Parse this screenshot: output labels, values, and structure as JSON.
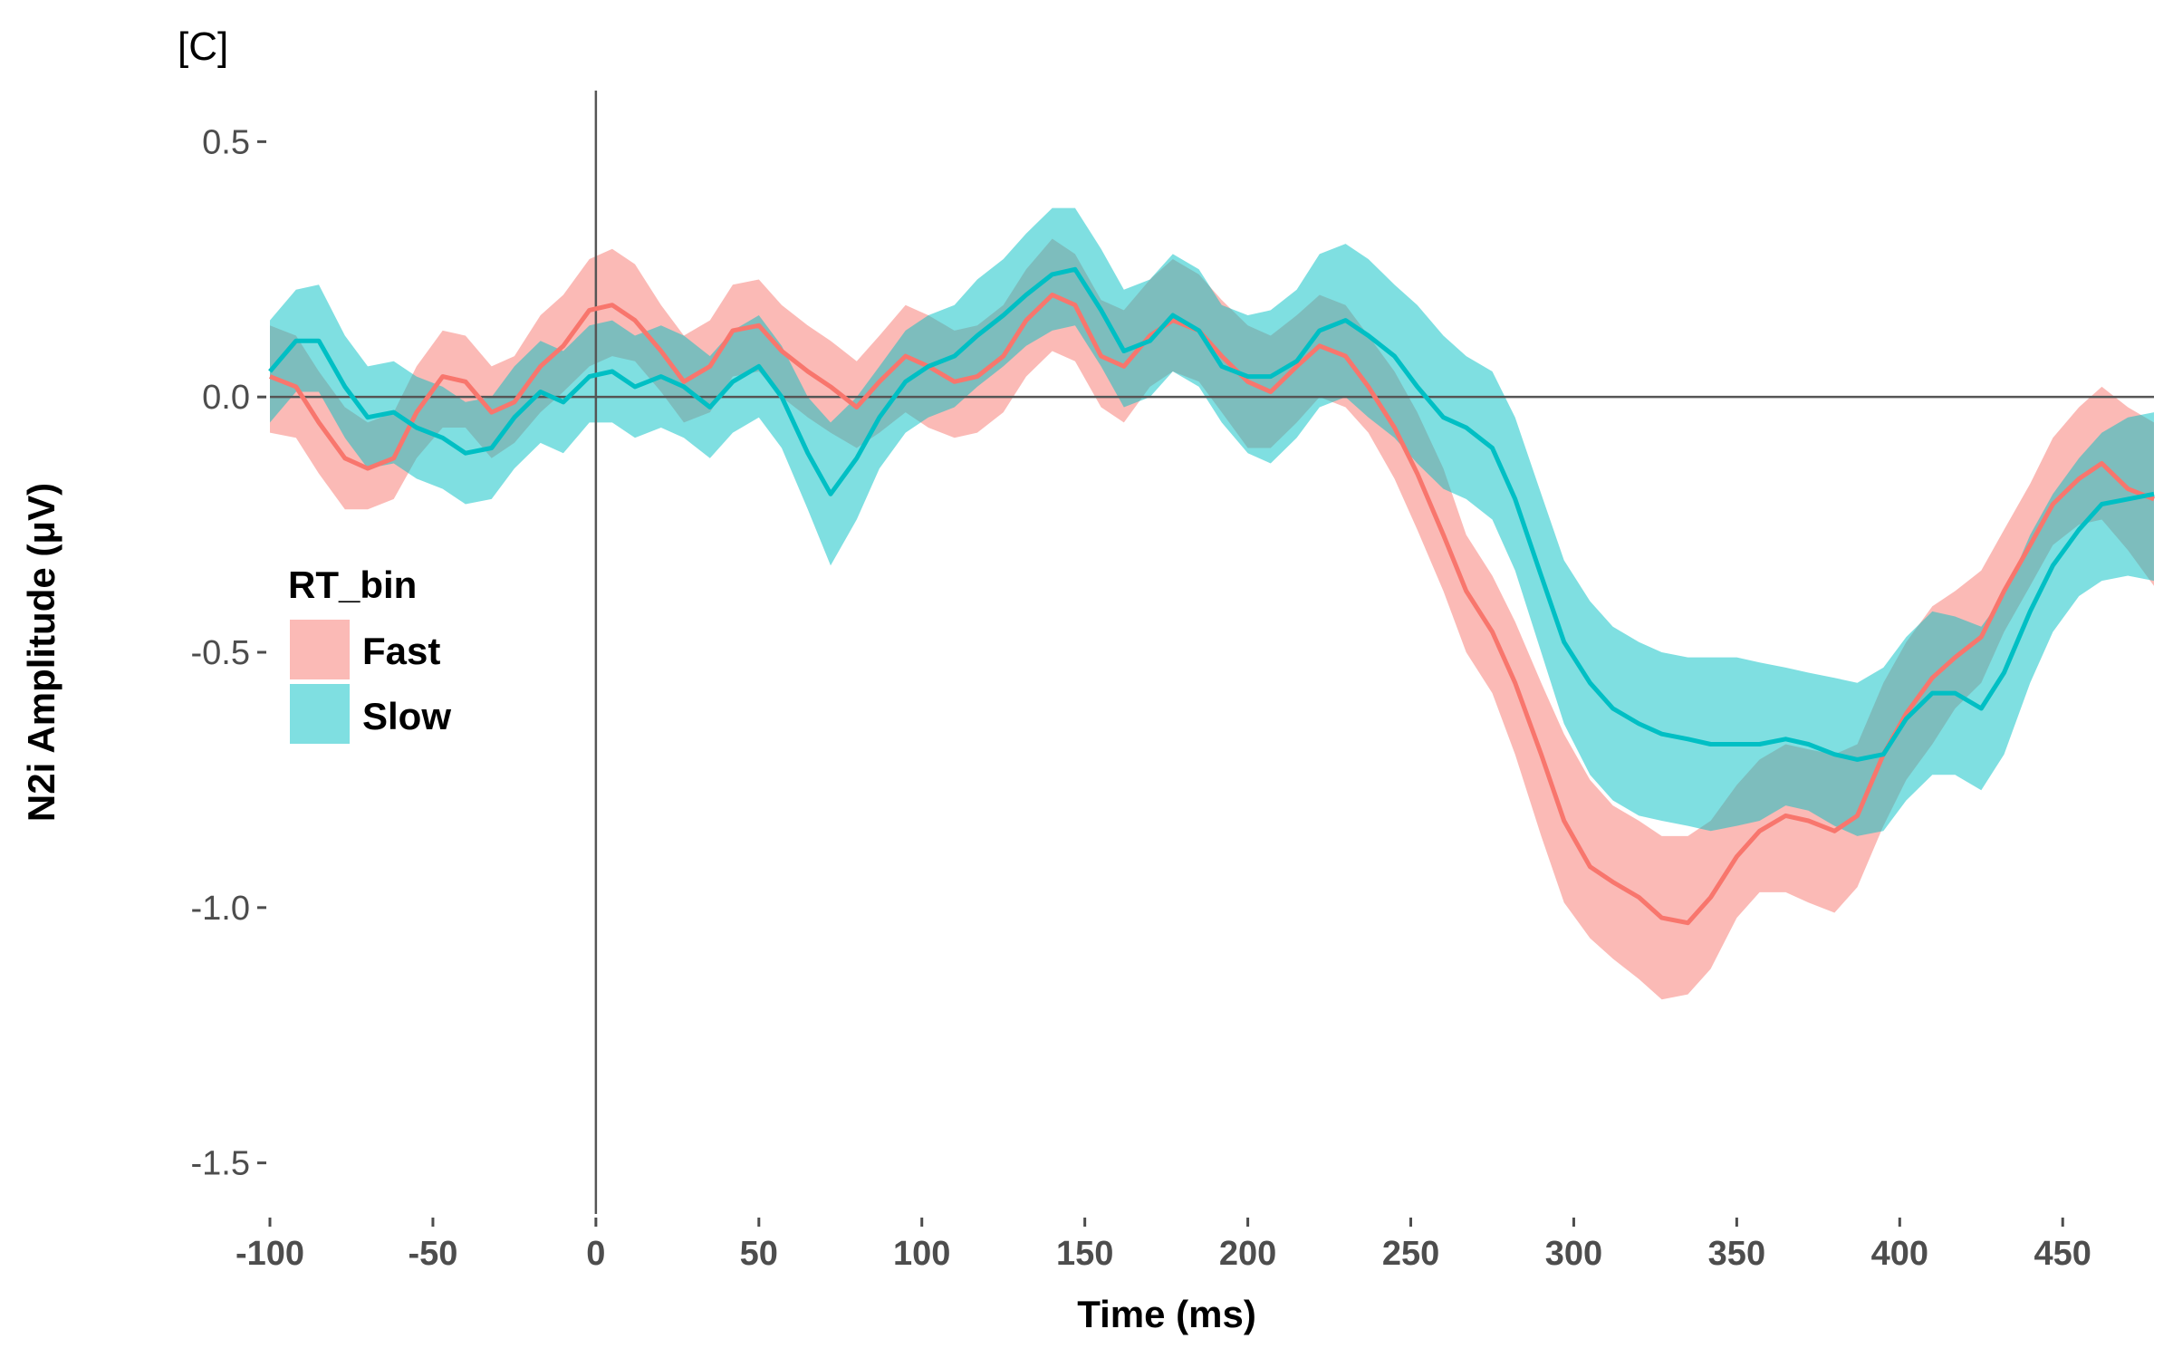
{
  "chart_data": {
    "type": "area",
    "panel_label": "[C]",
    "xlabel": "Time (ms)",
    "ylabel": "N2i Amplitude (μV)",
    "xlim": [
      -100,
      478
    ],
    "ylim": [
      -1.6,
      0.6
    ],
    "x_ticks": [
      -100,
      -50,
      0,
      50,
      100,
      150,
      200,
      250,
      300,
      350,
      400,
      450
    ],
    "x_tick_labels": [
      "-100",
      "-50",
      "0",
      "50",
      "100",
      "150",
      "200",
      "250",
      "300",
      "350",
      "400",
      "450"
    ],
    "y_ticks": [
      0.5,
      0.0,
      -0.5,
      -1.0,
      -1.5
    ],
    "y_tick_labels": [
      "0.5",
      "0.0",
      "-0.5",
      "-1.0",
      "-1.5"
    ],
    "reference_lines": {
      "x": 0,
      "y": 0
    },
    "grid": false,
    "legend": {
      "title": "RT_bin",
      "position": "left-middle"
    },
    "series": [
      {
        "name": "Fast",
        "color": "#F8766D",
        "band_alpha": 0.5,
        "x": [
          -100,
          -92,
          -85,
          -77,
          -70,
          -62,
          -55,
          -47,
          -40,
          -32,
          -25,
          -17,
          -10,
          -2,
          5,
          12,
          20,
          27,
          35,
          42,
          50,
          57,
          65,
          72,
          80,
          87,
          95,
          102,
          110,
          117,
          125,
          132,
          140,
          147,
          155,
          162,
          170,
          177,
          185,
          192,
          200,
          207,
          215,
          222,
          230,
          237,
          245,
          252,
          260,
          267,
          275,
          282,
          290,
          297,
          305,
          312,
          320,
          327,
          335,
          342,
          350,
          357,
          365,
          372,
          380,
          387,
          395,
          402,
          410,
          417,
          425,
          432,
          440,
          447,
          455,
          462,
          470,
          478
        ],
        "y": [
          0.04,
          0.02,
          -0.05,
          -0.12,
          -0.14,
          -0.12,
          -0.03,
          0.04,
          0.03,
          -0.03,
          -0.01,
          0.06,
          0.1,
          0.17,
          0.18,
          0.15,
          0.09,
          0.03,
          0.06,
          0.13,
          0.14,
          0.09,
          0.05,
          0.02,
          -0.02,
          0.03,
          0.08,
          0.06,
          0.03,
          0.04,
          0.08,
          0.15,
          0.2,
          0.18,
          0.08,
          0.06,
          0.12,
          0.15,
          0.13,
          0.08,
          0.03,
          0.01,
          0.06,
          0.1,
          0.08,
          0.02,
          -0.06,
          -0.15,
          -0.27,
          -0.38,
          -0.46,
          -0.56,
          -0.7,
          -0.83,
          -0.92,
          -0.95,
          -0.98,
          -1.02,
          -1.03,
          -0.98,
          -0.9,
          -0.85,
          -0.82,
          -0.83,
          -0.85,
          -0.82,
          -0.7,
          -0.62,
          -0.55,
          -0.51,
          -0.47,
          -0.38,
          -0.29,
          -0.21,
          -0.16,
          -0.13,
          -0.18,
          -0.2
        ],
        "lower": [
          -0.07,
          -0.08,
          -0.15,
          -0.22,
          -0.22,
          -0.2,
          -0.12,
          -0.06,
          -0.06,
          -0.12,
          -0.09,
          -0.03,
          0.01,
          0.06,
          0.08,
          0.07,
          0.01,
          -0.05,
          -0.03,
          0.04,
          0.05,
          0.0,
          -0.04,
          -0.07,
          -0.1,
          -0.07,
          -0.03,
          -0.06,
          -0.08,
          -0.07,
          -0.03,
          0.04,
          0.09,
          0.07,
          -0.02,
          -0.05,
          0.02,
          0.05,
          0.03,
          -0.03,
          -0.1,
          -0.1,
          -0.05,
          0.0,
          -0.02,
          -0.07,
          -0.16,
          -0.26,
          -0.38,
          -0.5,
          -0.58,
          -0.7,
          -0.86,
          -0.99,
          -1.06,
          -1.1,
          -1.14,
          -1.18,
          -1.17,
          -1.12,
          -1.02,
          -0.97,
          -0.97,
          -0.99,
          -1.01,
          -0.96,
          -0.84,
          -0.75,
          -0.68,
          -0.61,
          -0.56,
          -0.46,
          -0.37,
          -0.29,
          -0.25,
          -0.24,
          -0.3,
          -0.37
        ],
        "upper": [
          0.14,
          0.12,
          0.05,
          -0.02,
          -0.05,
          -0.03,
          0.06,
          0.13,
          0.12,
          0.06,
          0.08,
          0.16,
          0.2,
          0.27,
          0.29,
          0.26,
          0.18,
          0.12,
          0.15,
          0.22,
          0.23,
          0.18,
          0.14,
          0.11,
          0.07,
          0.12,
          0.18,
          0.16,
          0.13,
          0.14,
          0.18,
          0.25,
          0.31,
          0.28,
          0.19,
          0.17,
          0.23,
          0.27,
          0.24,
          0.19,
          0.14,
          0.12,
          0.16,
          0.2,
          0.18,
          0.12,
          0.05,
          -0.03,
          -0.14,
          -0.27,
          -0.35,
          -0.44,
          -0.56,
          -0.66,
          -0.75,
          -0.8,
          -0.83,
          -0.86,
          -0.86,
          -0.83,
          -0.76,
          -0.71,
          -0.68,
          -0.69,
          -0.7,
          -0.68,
          -0.56,
          -0.48,
          -0.41,
          -0.38,
          -0.34,
          -0.26,
          -0.17,
          -0.08,
          -0.02,
          0.02,
          -0.02,
          -0.05
        ]
      },
      {
        "name": "Slow",
        "color": "#00BFC4",
        "band_alpha": 0.5,
        "x": [
          -100,
          -92,
          -85,
          -77,
          -70,
          -62,
          -55,
          -47,
          -40,
          -32,
          -25,
          -17,
          -10,
          -2,
          5,
          12,
          20,
          27,
          35,
          42,
          50,
          57,
          65,
          72,
          80,
          87,
          95,
          102,
          110,
          117,
          125,
          132,
          140,
          147,
          155,
          162,
          170,
          177,
          185,
          192,
          200,
          207,
          215,
          222,
          230,
          237,
          245,
          252,
          260,
          267,
          275,
          282,
          290,
          297,
          305,
          312,
          320,
          327,
          335,
          342,
          350,
          357,
          365,
          372,
          380,
          387,
          395,
          402,
          410,
          417,
          425,
          432,
          440,
          447,
          455,
          462,
          470,
          478
        ],
        "y": [
          0.05,
          0.11,
          0.11,
          0.02,
          -0.04,
          -0.03,
          -0.06,
          -0.08,
          -0.11,
          -0.1,
          -0.04,
          0.01,
          -0.01,
          0.04,
          0.05,
          0.02,
          0.04,
          0.02,
          -0.02,
          0.03,
          0.06,
          0.0,
          -0.11,
          -0.19,
          -0.12,
          -0.04,
          0.03,
          0.06,
          0.08,
          0.12,
          0.16,
          0.2,
          0.24,
          0.25,
          0.17,
          0.09,
          0.11,
          0.16,
          0.13,
          0.06,
          0.04,
          0.04,
          0.07,
          0.13,
          0.15,
          0.12,
          0.08,
          0.02,
          -0.04,
          -0.06,
          -0.1,
          -0.2,
          -0.35,
          -0.48,
          -0.56,
          -0.61,
          -0.64,
          -0.66,
          -0.67,
          -0.68,
          -0.68,
          -0.68,
          -0.67,
          -0.68,
          -0.7,
          -0.71,
          -0.7,
          -0.63,
          -0.58,
          -0.58,
          -0.61,
          -0.54,
          -0.42,
          -0.33,
          -0.26,
          -0.21,
          -0.2,
          -0.19
        ],
        "lower": [
          -0.05,
          0.01,
          0.01,
          -0.08,
          -0.14,
          -0.13,
          -0.16,
          -0.18,
          -0.21,
          -0.2,
          -0.14,
          -0.09,
          -0.11,
          -0.05,
          -0.05,
          -0.08,
          -0.06,
          -0.08,
          -0.12,
          -0.07,
          -0.04,
          -0.1,
          -0.22,
          -0.33,
          -0.24,
          -0.14,
          -0.07,
          -0.04,
          -0.02,
          0.02,
          0.06,
          0.1,
          0.13,
          0.14,
          0.06,
          -0.02,
          0.0,
          0.05,
          0.02,
          -0.05,
          -0.11,
          -0.13,
          -0.08,
          -0.02,
          0.0,
          -0.04,
          -0.08,
          -0.13,
          -0.18,
          -0.2,
          -0.24,
          -0.34,
          -0.5,
          -0.64,
          -0.74,
          -0.79,
          -0.82,
          -0.83,
          -0.84,
          -0.85,
          -0.84,
          -0.83,
          -0.8,
          -0.81,
          -0.84,
          -0.86,
          -0.85,
          -0.79,
          -0.74,
          -0.74,
          -0.77,
          -0.7,
          -0.56,
          -0.46,
          -0.39,
          -0.36,
          -0.35,
          -0.36
        ],
        "upper": [
          0.15,
          0.21,
          0.22,
          0.12,
          0.06,
          0.07,
          0.04,
          0.02,
          -0.01,
          0.0,
          0.06,
          0.11,
          0.09,
          0.14,
          0.15,
          0.12,
          0.14,
          0.12,
          0.08,
          0.13,
          0.16,
          0.1,
          0.0,
          -0.05,
          0.0,
          0.06,
          0.13,
          0.16,
          0.18,
          0.23,
          0.27,
          0.32,
          0.37,
          0.37,
          0.29,
          0.21,
          0.23,
          0.28,
          0.25,
          0.18,
          0.16,
          0.17,
          0.21,
          0.28,
          0.3,
          0.27,
          0.22,
          0.18,
          0.12,
          0.08,
          0.05,
          -0.04,
          -0.19,
          -0.32,
          -0.4,
          -0.45,
          -0.48,
          -0.5,
          -0.51,
          -0.51,
          -0.51,
          -0.52,
          -0.53,
          -0.54,
          -0.55,
          -0.56,
          -0.53,
          -0.47,
          -0.42,
          -0.43,
          -0.45,
          -0.39,
          -0.27,
          -0.19,
          -0.12,
          -0.07,
          -0.04,
          -0.03
        ]
      }
    ]
  }
}
